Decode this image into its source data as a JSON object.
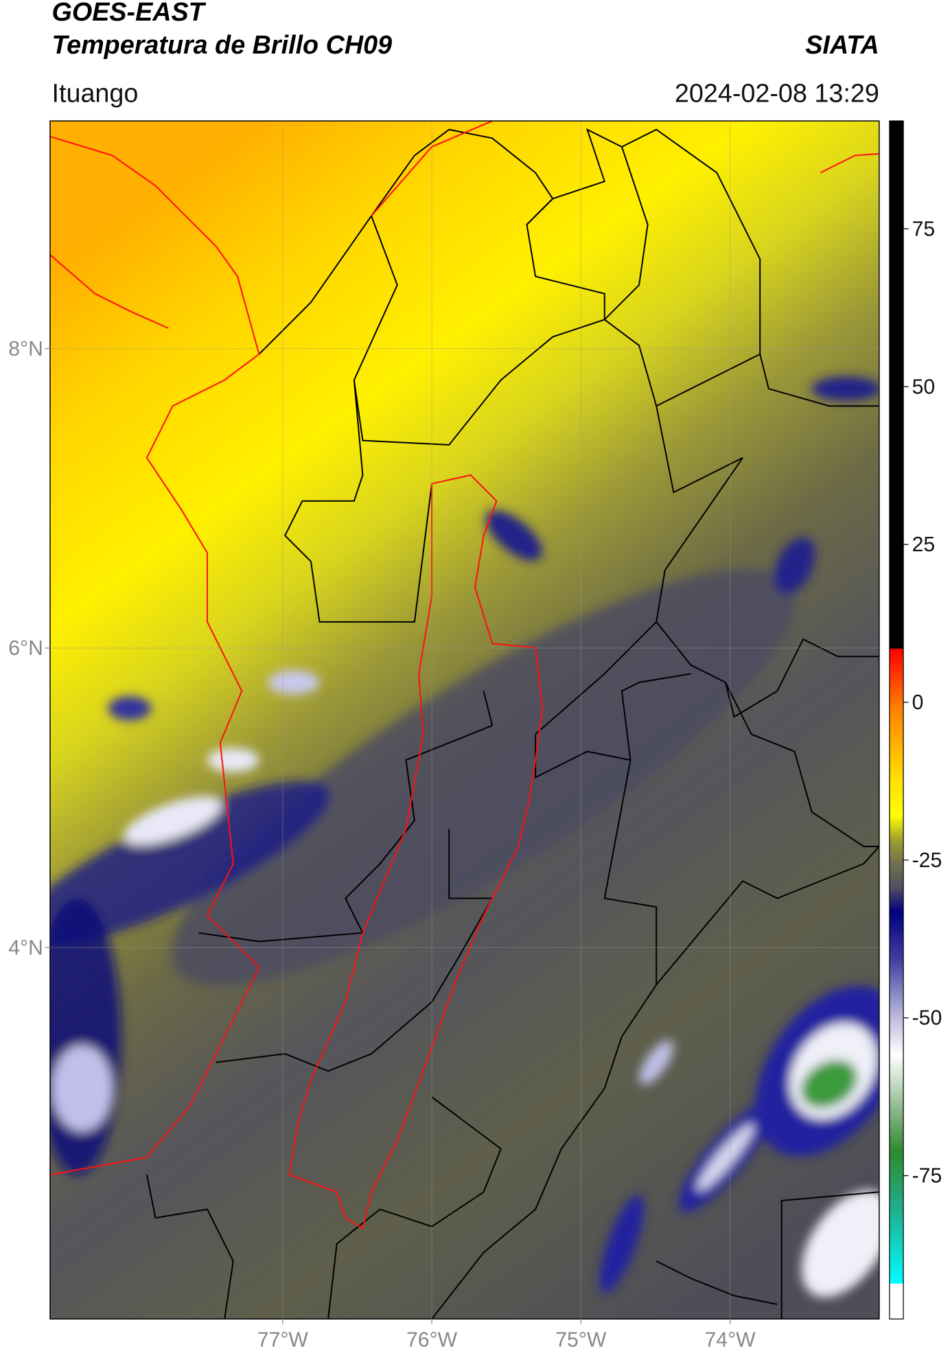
{
  "header": {
    "title": "GOES-EAST",
    "subtitle": "Temperatura de Brillo CH09",
    "region": "Ituango",
    "source": "SIATA",
    "timestamp": "2024-02-08 13:29"
  },
  "map": {
    "lat_range": [
      1.52,
      9.52
    ],
    "lon_range": [
      -78.56,
      -73.0
    ],
    "lat_ticks": [
      {
        "value": 8,
        "label": "8°N"
      },
      {
        "value": 6,
        "label": "6°N"
      },
      {
        "value": 4,
        "label": "4°N"
      }
    ],
    "lon_ticks": [
      {
        "value": -77,
        "label": "77°W"
      },
      {
        "value": -76,
        "label": "76°W"
      },
      {
        "value": -75,
        "label": "75°W"
      },
      {
        "value": -74,
        "label": "74°W"
      }
    ]
  },
  "colorbar": {
    "range": [
      -97.7,
      92.1
    ],
    "ticks": [
      75,
      50,
      25,
      0,
      -25,
      -50,
      -75
    ]
  }
}
